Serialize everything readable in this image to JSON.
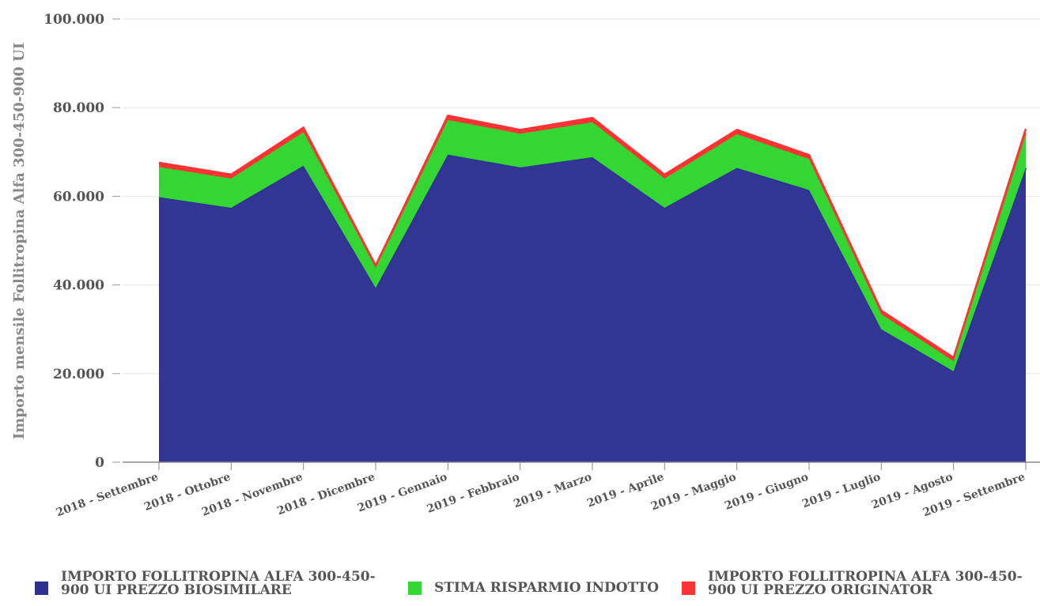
{
  "chart_data": {
    "type": "area",
    "stacked": true,
    "ylabel": "Importo mensile Follitropina Alfa 300-450-900 UI",
    "xlabel": "",
    "ylim": [
      0,
      100000
    ],
    "yticks": [
      "0",
      "20.000",
      "40.000",
      "60.000",
      "80.000",
      "100.000"
    ],
    "ytick_values": [
      0,
      20000,
      40000,
      60000,
      80000,
      100000
    ],
    "grid": true,
    "legend_position": "bottom",
    "categories": [
      "2018 - Settembre",
      "2018 - Ottobre",
      "2018 - Novembre",
      "2018 - Dicembre",
      "2019 - Gennaio",
      "2019 - Febbraio",
      "2019 - Marzo",
      "2019 - Aprile",
      "2019 - Maggio",
      "2019 - Giugno",
      "2019 - Luglio",
      "2019 - Agosto",
      "2019 - Settembre"
    ],
    "series": [
      {
        "name": "IMPORTO FOLLITROPINA ALFA 300-450-900 UI PREZZO BIOSIMILARE",
        "legend_lines": [
          "IMPORTO FOLLITROPINA ALFA 300-450-",
          "900 UI PREZZO BIOSIMILARE"
        ],
        "color": "#2e3192",
        "values": [
          59800,
          57400,
          66900,
          39300,
          69400,
          66500,
          68800,
          57400,
          66400,
          61400,
          30000,
          20500,
          66400
        ]
      },
      {
        "name": "STIMA RISPARMIO INDOTTO",
        "legend_lines": [
          "STIMA RISPARMIO INDOTTO"
        ],
        "color": "#33d633",
        "values": [
          6800,
          6600,
          7600,
          4500,
          7800,
          7600,
          7900,
          6600,
          7600,
          7000,
          3400,
          2300,
          7600
        ]
      },
      {
        "name": "IMPORTO FOLLITROPINA ALFA 300-450-900 UI PREZZO ORIGINATOR",
        "legend_lines": [
          "IMPORTO FOLLITROPINA ALFA 300-450-",
          "900 UI PREZZO ORIGINATOR"
        ],
        "color": "#ff3333",
        "values": [
          1000,
          900,
          1000,
          600,
          1000,
          900,
          1000,
          900,
          1000,
          900,
          800,
          800,
          1200
        ]
      }
    ]
  }
}
